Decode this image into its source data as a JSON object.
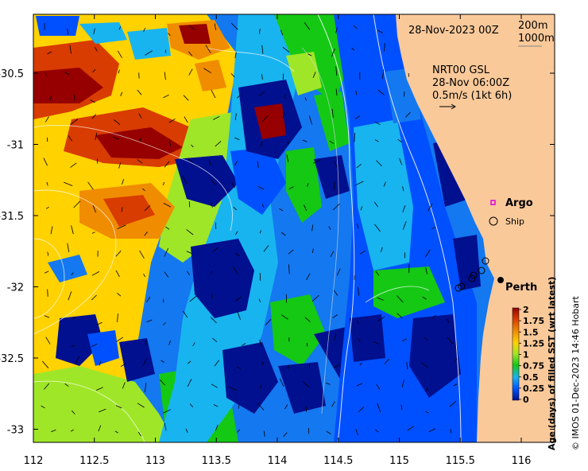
{
  "header": {
    "date": "28-Nov-2023 00Z",
    "contour_labels": [
      "200m",
      "1000m"
    ]
  },
  "current_info": {
    "line1": "NRT00 GSL",
    "line2": "28-Nov 06:00Z",
    "line3": "0.5m/s (1kt 6h)"
  },
  "legend": {
    "argo": "Argo",
    "ship": "Ship",
    "argo_color": "#e000e0"
  },
  "city": "Perth",
  "colorbar": {
    "title": "Age (days) of filled SST (wrt latest)",
    "ticks": [
      "2",
      "1.75",
      "1.5",
      "1.25",
      "1",
      "0.75",
      "0.5",
      "0.25",
      "0"
    ]
  },
  "credit": "© IMOS 01-Dec-2023 14:46 Hobart",
  "axes": {
    "x_ticks": [
      "112",
      "112.5",
      "113",
      "113.5",
      "114",
      "114.5",
      "115",
      "115.5",
      "116"
    ],
    "y_ticks": [
      "-30.5",
      "-31",
      "-31.5",
      "-32",
      "-32.5",
      "-33"
    ]
  },
  "colors": {
    "land": "#f9c99a",
    "dark_blue": "#00108f",
    "blue": "#0050ff",
    "mid_blue": "#1478f0",
    "cyan": "#18b4f0",
    "green": "#14c814",
    "lime": "#a0e628",
    "yellow": "#ffd200",
    "orange": "#f08c00",
    "red": "#d83c00",
    "dark_red": "#960000"
  }
}
